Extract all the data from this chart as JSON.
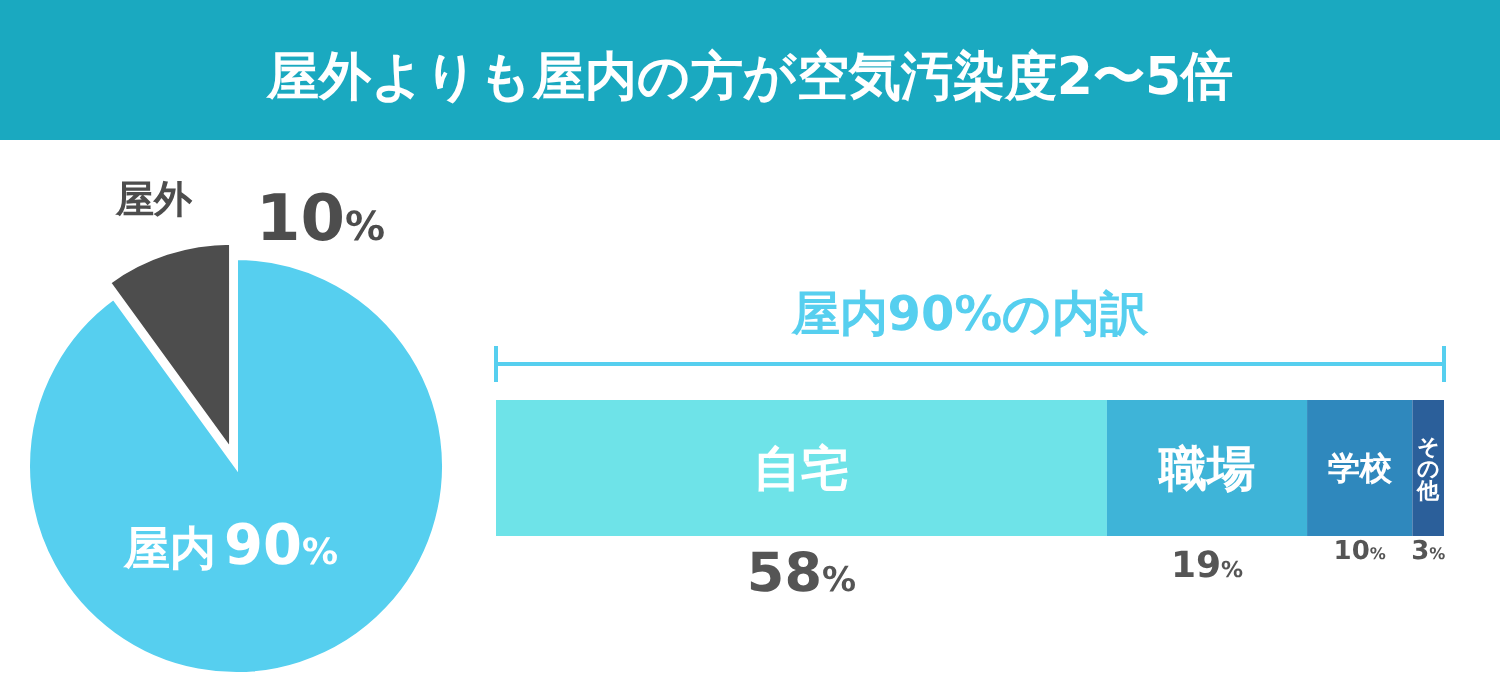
{
  "chart_data": [
    {
      "type": "pie",
      "title": "屋外よりも屋内の方が空気汚染度2〜5倍",
      "categories": [
        "屋外",
        "屋内"
      ],
      "values": [
        10,
        90
      ],
      "colors": [
        "#4d4d4d",
        "#56cfef"
      ],
      "value_labels": [
        "10%",
        "90%"
      ],
      "legend": false
    },
    {
      "type": "bar",
      "title": "屋内90%の内訳",
      "orientation": "horizontal",
      "stacked": true,
      "categories": [
        null
      ],
      "legend": false,
      "series": [
        {
          "name": "自宅",
          "color": "#6ee3e8",
          "values": [
            58
          ],
          "value_labels": [
            "58%"
          ]
        },
        {
          "name": "職場",
          "color": "#3eb4d8",
          "values": [
            19
          ],
          "value_labels": [
            "19%"
          ]
        },
        {
          "name": "学校",
          "color": "#2f88bd",
          "values": [
            10
          ],
          "value_labels": [
            "10%"
          ]
        },
        {
          "name": "その他",
          "color": "#2b5f9a",
          "values": [
            3
          ],
          "value_labels": [
            "3%"
          ]
        }
      ]
    }
  ]
}
